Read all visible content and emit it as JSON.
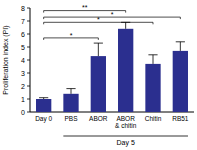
{
  "chart_data": {
    "type": "bar",
    "y_label": "Proliferation index (PI)",
    "categories": [
      "Day 0",
      "PBS",
      "ABOR",
      "ABOR\n& chitin",
      "Chitin",
      "RB51"
    ],
    "values": [
      1.0,
      1.4,
      4.3,
      6.4,
      3.7,
      4.7
    ],
    "errors": [
      0.1,
      0.4,
      1.0,
      0.5,
      0.7,
      0.7
    ],
    "color": "#2b2f8f",
    "ylim": [
      0,
      8
    ],
    "yticks": [
      0,
      1,
      2,
      3,
      4,
      5,
      6,
      7,
      8
    ],
    "grid": false,
    "groups": [
      {
        "label": "Day 5",
        "from": 1,
        "to": 5
      }
    ],
    "significance": [
      {
        "from": 0,
        "to": 3,
        "y": 7.8,
        "label": "**"
      },
      {
        "from": 0,
        "to": 5,
        "y": 7.3,
        "label": "*"
      },
      {
        "from": 0,
        "to": 4,
        "y": 6.9,
        "label": "*"
      },
      {
        "from": 0,
        "to": 2,
        "y": 5.7,
        "label": "*"
      }
    ]
  }
}
